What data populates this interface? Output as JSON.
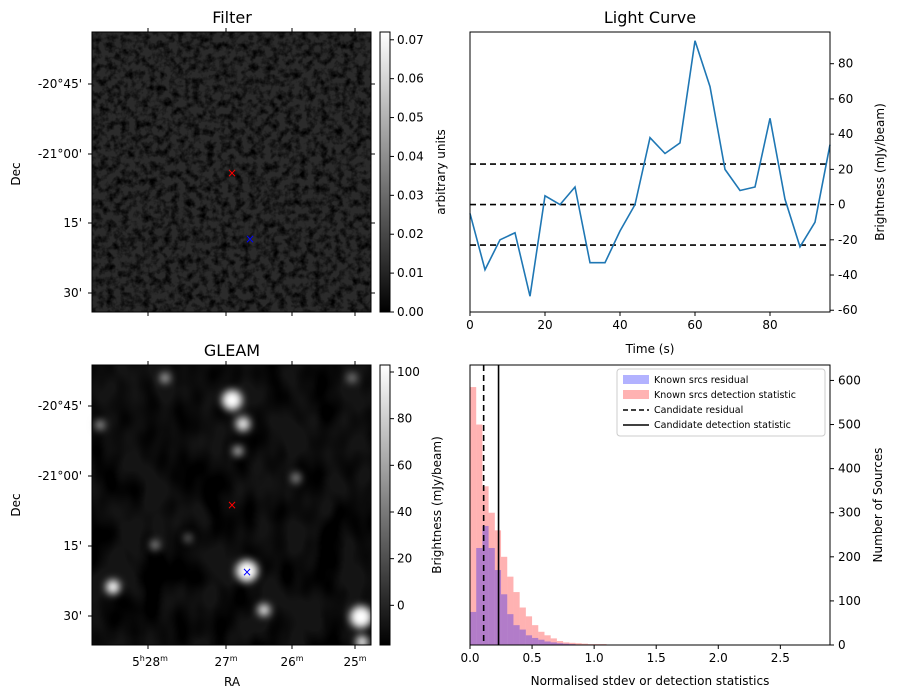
{
  "chart_data": [
    {
      "panel": "filter",
      "type": "heatmap",
      "title": "Filter",
      "xlabel": "",
      "ylabel": "Dec",
      "dec_ticks": [
        "-20°45'",
        "-21°00'",
        "15'",
        "30'"
      ],
      "colorbar": {
        "label": "arbitrary units",
        "range": [
          0,
          0.072
        ],
        "ticks": [
          "0.00",
          "0.01",
          "0.02",
          "0.03",
          "0.04",
          "0.05",
          "0.06",
          "0.07"
        ]
      },
      "markers": [
        {
          "name": "candidate",
          "color": "#ff0000",
          "symbol": "x"
        },
        {
          "name": "known",
          "color": "#0000ff",
          "symbol": "x"
        }
      ]
    },
    {
      "panel": "light_curve",
      "type": "line",
      "title": "Light Curve",
      "xlabel": "Time (s)",
      "ylabel": "Brightness (mJy/beam)",
      "xlim": [
        0,
        96
      ],
      "ylim": [
        -61,
        98
      ],
      "xticks": [
        "0",
        "20",
        "40",
        "60",
        "80"
      ],
      "yticks": [
        "-60",
        "-40",
        "-20",
        "0",
        "20",
        "40",
        "60",
        "80"
      ],
      "series": [
        {
          "x": [
            0,
            4,
            8,
            12,
            16,
            20,
            24,
            28,
            32,
            36,
            40,
            44,
            48,
            52,
            56,
            60,
            64,
            68,
            72,
            76,
            80,
            84,
            88,
            92,
            96
          ],
          "y": [
            -5,
            -37,
            -20,
            -16,
            -52,
            5,
            0,
            10,
            -33,
            -33,
            -15,
            0,
            38,
            29,
            35,
            93,
            67,
            20,
            8,
            10,
            49,
            3,
            -24,
            -10,
            34
          ],
          "color": "#1f77b4"
        }
      ],
      "hlines": [
        23,
        0,
        -23
      ]
    },
    {
      "panel": "gleam",
      "type": "heatmap",
      "title": "GLEAM",
      "xlabel": "RA",
      "ylabel": "Dec",
      "ra_ticks": [
        "5h28m",
        "27m",
        "26m",
        "25m"
      ],
      "dec_ticks": [
        "-20°45'",
        "-21°00'",
        "15'",
        "30'"
      ],
      "colorbar": {
        "label": "Brightness (mJy/beam)",
        "range": [
          -17,
          103
        ],
        "ticks": [
          "0",
          "20",
          "40",
          "60",
          "80",
          "100"
        ]
      },
      "markers": [
        {
          "name": "candidate",
          "color": "#ff0000",
          "symbol": "x"
        },
        {
          "name": "known",
          "color": "#0000ff",
          "symbol": "x"
        }
      ]
    },
    {
      "panel": "histogram",
      "type": "bar",
      "title": "",
      "xlabel": "Normalised stdev or detection statistics",
      "ylabel": "Number of Sources",
      "xlim": [
        0,
        2.9
      ],
      "ylim": [
        0,
        635
      ],
      "xticks": [
        "0.0",
        "0.5",
        "1.0",
        "1.5",
        "2.0",
        "2.5"
      ],
      "yticks": [
        "0",
        "100",
        "200",
        "300",
        "400",
        "500",
        "600"
      ],
      "bin_width": 0.05,
      "series": [
        {
          "name": "Known srcs residual",
          "color": "#0000ff",
          "values": [
            75,
            220,
            270,
            220,
            170,
            115,
            70,
            45,
            35,
            22,
            16,
            12,
            8,
            6,
            4,
            3,
            2,
            1,
            1,
            1,
            1,
            0,
            0,
            0,
            0,
            0,
            0,
            0,
            0,
            0,
            0,
            0,
            0,
            0,
            0,
            0,
            0,
            0,
            0,
            0,
            0,
            0,
            0,
            0,
            0,
            0,
            0,
            0,
            0,
            0,
            0,
            0,
            0,
            0,
            0,
            0,
            0,
            0
          ]
        },
        {
          "name": "Known srcs detection statistic",
          "color": "#ff0000",
          "values": [
            585,
            500,
            360,
            300,
            260,
            200,
            155,
            120,
            85,
            65,
            45,
            30,
            22,
            15,
            9,
            6,
            5,
            4,
            3,
            2,
            2,
            2,
            1,
            1,
            1,
            1,
            1,
            1,
            1,
            0,
            0,
            1,
            0,
            0,
            0,
            0,
            0,
            0,
            0,
            0,
            0,
            0,
            0,
            0,
            0,
            0,
            0,
            0,
            0,
            0,
            0,
            0,
            0,
            0,
            0,
            1,
            0,
            0
          ]
        }
      ],
      "vlines": [
        {
          "name": "Candidate residual",
          "x": 0.11,
          "style": "dashed"
        },
        {
          "name": "Candidate detection statistic",
          "x": 0.23,
          "style": "solid"
        }
      ]
    }
  ]
}
